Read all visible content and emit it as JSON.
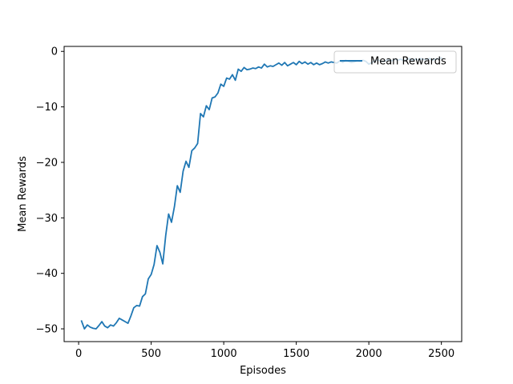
{
  "chart_data": {
    "type": "line",
    "title": "",
    "xlabel": "Episodes",
    "ylabel": "Mean Rewards",
    "xlim": [
      -100,
      2640
    ],
    "ylim": [
      -52.3,
      0.9
    ],
    "xticks": [
      0,
      500,
      1000,
      1500,
      2000,
      2500
    ],
    "yticks": [
      0,
      -10,
      -20,
      -30,
      -40,
      -50
    ],
    "xtick_labels": [
      "0",
      "500",
      "1000",
      "1500",
      "2000",
      "2500"
    ],
    "ytick_labels": [
      "0",
      "−10",
      "−20",
      "−30",
      "−40",
      "−50"
    ],
    "grid": false,
    "legend": {
      "position": "upper right",
      "entries": [
        "Mean Rewards"
      ]
    },
    "series": [
      {
        "name": "Mean Rewards",
        "color": "#1f77b4",
        "x": [
          20,
          40,
          60,
          80,
          100,
          120,
          140,
          160,
          180,
          200,
          220,
          240,
          260,
          280,
          300,
          320,
          340,
          360,
          380,
          400,
          420,
          440,
          460,
          480,
          500,
          520,
          540,
          560,
          580,
          600,
          620,
          640,
          660,
          680,
          700,
          720,
          740,
          760,
          780,
          800,
          820,
          840,
          860,
          880,
          900,
          920,
          940,
          960,
          980,
          1000,
          1020,
          1040,
          1060,
          1080,
          1100,
          1120,
          1140,
          1160,
          1180,
          1200,
          1220,
          1240,
          1260,
          1280,
          1300,
          1320,
          1340,
          1360,
          1380,
          1400,
          1420,
          1440,
          1460,
          1480,
          1500,
          1520,
          1540,
          1560,
          1580,
          1600,
          1620,
          1640,
          1660,
          1680,
          1700,
          1720,
          1740,
          1760,
          1780,
          1800,
          1820,
          1840,
          1860,
          1880,
          1900,
          1920,
          1940,
          1960,
          1980,
          2000,
          2020,
          2040,
          2060,
          2080,
          2100,
          2120,
          2140,
          2160,
          2180,
          2200,
          2220,
          2240,
          2260,
          2280,
          2300,
          2320,
          2340,
          2360,
          2380,
          2400,
          2420,
          2440,
          2460,
          2480,
          2500
        ],
        "values": [
          -48.6,
          -50.0,
          -49.3,
          -49.7,
          -49.9,
          -50.0,
          -49.4,
          -48.7,
          -49.5,
          -49.8,
          -49.3,
          -49.5,
          -48.9,
          -48.1,
          -48.4,
          -48.7,
          -49.0,
          -47.7,
          -46.2,
          -45.8,
          -45.9,
          -44.2,
          -43.7,
          -41.0,
          -40.2,
          -38.4,
          -35.0,
          -36.2,
          -38.3,
          -33.2,
          -29.3,
          -30.8,
          -28.0,
          -24.2,
          -25.4,
          -21.6,
          -19.8,
          -20.9,
          -17.9,
          -17.4,
          -16.6,
          -11.2,
          -11.8,
          -9.8,
          -10.5,
          -8.4,
          -8.2,
          -7.5,
          -5.9,
          -6.3,
          -4.8,
          -5.0,
          -4.2,
          -5.2,
          -3.2,
          -3.6,
          -2.9,
          -3.3,
          -3.2,
          -3.0,
          -3.1,
          -2.8,
          -3.0,
          -2.3,
          -2.8,
          -2.6,
          -2.7,
          -2.4,
          -2.1,
          -2.5,
          -2.0,
          -2.6,
          -2.3,
          -2.0,
          -2.4,
          -1.8,
          -2.2,
          -1.9,
          -2.3,
          -2.0,
          -2.4,
          -2.1,
          -2.4,
          -2.2,
          -1.9,
          -2.1,
          -1.9,
          -2.0,
          -2.1,
          -1.7,
          -2.0,
          -1.6,
          -1.8,
          -2.0,
          -1.9,
          -1.7,
          -1.8,
          -1.6,
          -1.8,
          -2.3,
          -2.0,
          -1.7,
          -1.5,
          -1.7,
          -1.9,
          -1.6,
          -1.5,
          -1.7,
          -1.4,
          -1.6,
          -1.4,
          -1.7,
          -1.5,
          -1.3,
          -1.6,
          -1.4,
          -1.5,
          -1.3,
          -1.5,
          -1.4,
          -1.3,
          -1.6,
          -1.4,
          -1.3,
          -1.2
        ]
      }
    ]
  }
}
